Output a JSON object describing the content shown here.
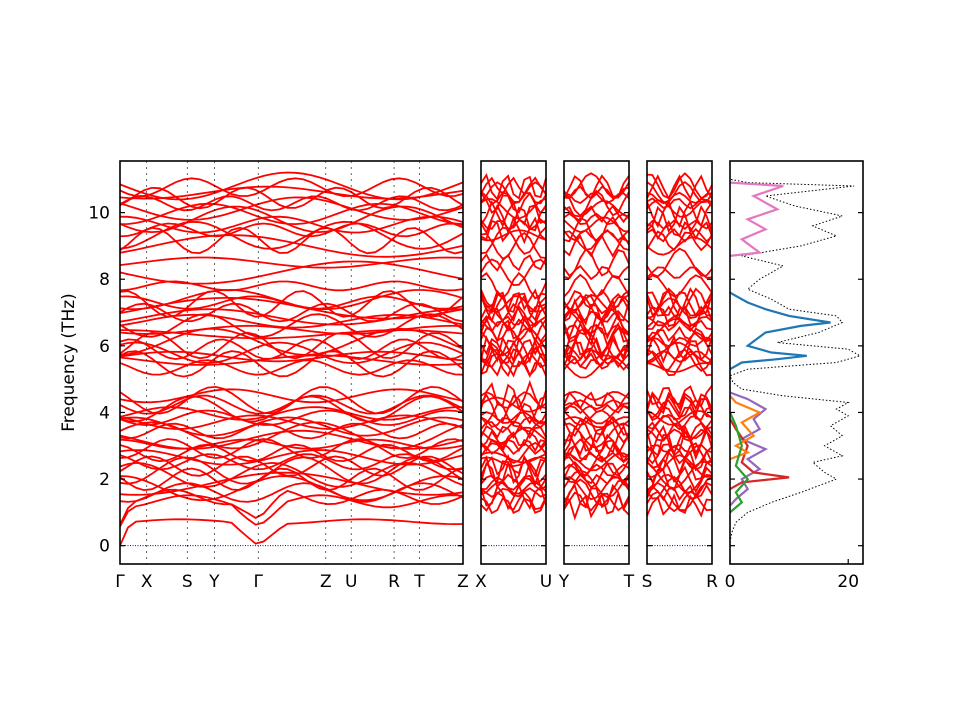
{
  "chart_data": {
    "type": "line",
    "ylabel": "Frequency (THz)",
    "ylim": [
      -0.55,
      11.55
    ],
    "yticks": [
      0,
      2,
      4,
      6,
      8,
      10
    ],
    "colors": {
      "bands": "#ff0000",
      "zero_line": "#0000cc",
      "dos_total": "#000000",
      "pdos": [
        "#1f77b4",
        "#ff7f0e",
        "#2ca02c",
        "#d62728",
        "#9467bd",
        "#e377c2"
      ]
    },
    "band_panels": [
      {
        "name": "path-1",
        "labels": [
          "Γ",
          "X",
          "S",
          "Y",
          "Γ",
          "Z",
          "U",
          "R",
          "T",
          "Z"
        ],
        "label_positions": [
          0,
          0.078,
          0.196,
          0.275,
          0.403,
          0.6,
          0.674,
          0.799,
          0.873,
          1.0
        ]
      },
      {
        "name": "path-2",
        "labels": [
          "X",
          "U"
        ],
        "label_positions": [
          0,
          1
        ]
      },
      {
        "name": "path-3",
        "labels": [
          "Y",
          "T"
        ],
        "label_positions": [
          0,
          1
        ]
      },
      {
        "name": "path-4",
        "labels": [
          "S",
          "R"
        ],
        "label_positions": [
          0,
          1
        ]
      }
    ],
    "dos_panel": {
      "xlim": [
        0,
        22.5
      ],
      "xticks": [
        0,
        20
      ],
      "series": [
        {
          "style": "dotted",
          "color": "#000000",
          "points": [
            [
              0,
              0.1
            ],
            [
              0.3,
              0.4
            ],
            [
              1,
              0.7
            ],
            [
              3,
              1.0
            ],
            [
              7,
              1.3
            ],
            [
              12,
              1.6
            ],
            [
              15,
              1.8
            ],
            [
              18,
              2.0
            ],
            [
              16,
              2.2
            ],
            [
              14,
              2.5
            ],
            [
              19,
              2.7
            ],
            [
              16,
              3.0
            ],
            [
              19,
              3.3
            ],
            [
              17,
              3.6
            ],
            [
              20,
              3.9
            ],
            [
              18,
              4.1
            ],
            [
              20,
              4.3
            ],
            [
              9,
              4.5
            ],
            [
              2,
              4.7
            ],
            [
              0.5,
              4.9
            ],
            [
              0,
              5.1
            ],
            [
              3,
              5.3
            ],
            [
              18,
              5.5
            ],
            [
              22,
              5.7
            ],
            [
              20,
              5.9
            ],
            [
              8,
              6.1
            ],
            [
              15,
              6.4
            ],
            [
              19,
              6.7
            ],
            [
              18,
              6.9
            ],
            [
              10,
              7.1
            ],
            [
              7,
              7.4
            ],
            [
              3,
              7.7
            ],
            [
              5,
              8.0
            ],
            [
              9,
              8.4
            ],
            [
              2,
              8.7
            ],
            [
              12,
              9.0
            ],
            [
              18,
              9.3
            ],
            [
              14,
              9.6
            ],
            [
              19,
              9.9
            ],
            [
              11,
              10.2
            ],
            [
              6,
              10.5
            ],
            [
              21,
              10.8
            ],
            [
              3,
              10.9
            ],
            [
              0,
              11.0
            ]
          ]
        },
        {
          "style": "solid",
          "color": "#1f77b4",
          "points": [
            [
              0,
              5.3
            ],
            [
              2,
              5.5
            ],
            [
              8,
              5.6
            ],
            [
              13,
              5.7
            ],
            [
              7,
              5.8
            ],
            [
              3,
              6.0
            ],
            [
              6,
              6.4
            ],
            [
              12,
              6.6
            ],
            [
              17,
              6.7
            ],
            [
              10,
              6.9
            ],
            [
              6,
              7.1
            ],
            [
              3,
              7.3
            ],
            [
              1,
              7.5
            ],
            [
              0,
              7.6
            ]
          ]
        },
        {
          "style": "solid",
          "color": "#9467bd",
          "points": [
            [
              0,
              4.6
            ],
            [
              3,
              4.4
            ],
            [
              6,
              4.1
            ],
            [
              4,
              3.8
            ],
            [
              5,
              3.5
            ],
            [
              2,
              3.2
            ],
            [
              6,
              2.9
            ],
            [
              3,
              2.6
            ],
            [
              5,
              2.3
            ],
            [
              2,
              2.0
            ],
            [
              3,
              1.7
            ],
            [
              1,
              1.4
            ],
            [
              0,
              1.2
            ]
          ]
        },
        {
          "style": "solid",
          "color": "#d62728",
          "points": [
            [
              0,
              1.7
            ],
            [
              2,
              1.9
            ],
            [
              10,
              2.05
            ],
            [
              4,
              2.2
            ],
            [
              2,
              2.5
            ],
            [
              3,
              3.0
            ],
            [
              1,
              3.5
            ],
            [
              0,
              3.8
            ]
          ]
        },
        {
          "style": "solid",
          "color": "#ff7f0e",
          "points": [
            [
              0,
              2.6
            ],
            [
              3,
              2.8
            ],
            [
              1,
              3.0
            ],
            [
              4,
              3.3
            ],
            [
              2,
              3.7
            ],
            [
              5,
              4.0
            ],
            [
              1,
              4.3
            ],
            [
              0,
              4.5
            ]
          ]
        },
        {
          "style": "solid",
          "color": "#2ca02c",
          "points": [
            [
              0,
              1.0
            ],
            [
              2,
              1.3
            ],
            [
              1,
              1.6
            ],
            [
              3,
              2.0
            ],
            [
              1,
              2.4
            ],
            [
              2,
              3.0
            ],
            [
              1,
              3.6
            ],
            [
              0,
              4.0
            ]
          ]
        },
        {
          "style": "solid",
          "color": "#e377c2",
          "points": [
            [
              0,
              8.7
            ],
            [
              5,
              8.8
            ],
            [
              2,
              9.2
            ],
            [
              6,
              9.5
            ],
            [
              3,
              9.8
            ],
            [
              8,
              10.1
            ],
            [
              4,
              10.5
            ],
            [
              9,
              10.8
            ],
            [
              0,
              10.9
            ]
          ]
        }
      ]
    }
  }
}
